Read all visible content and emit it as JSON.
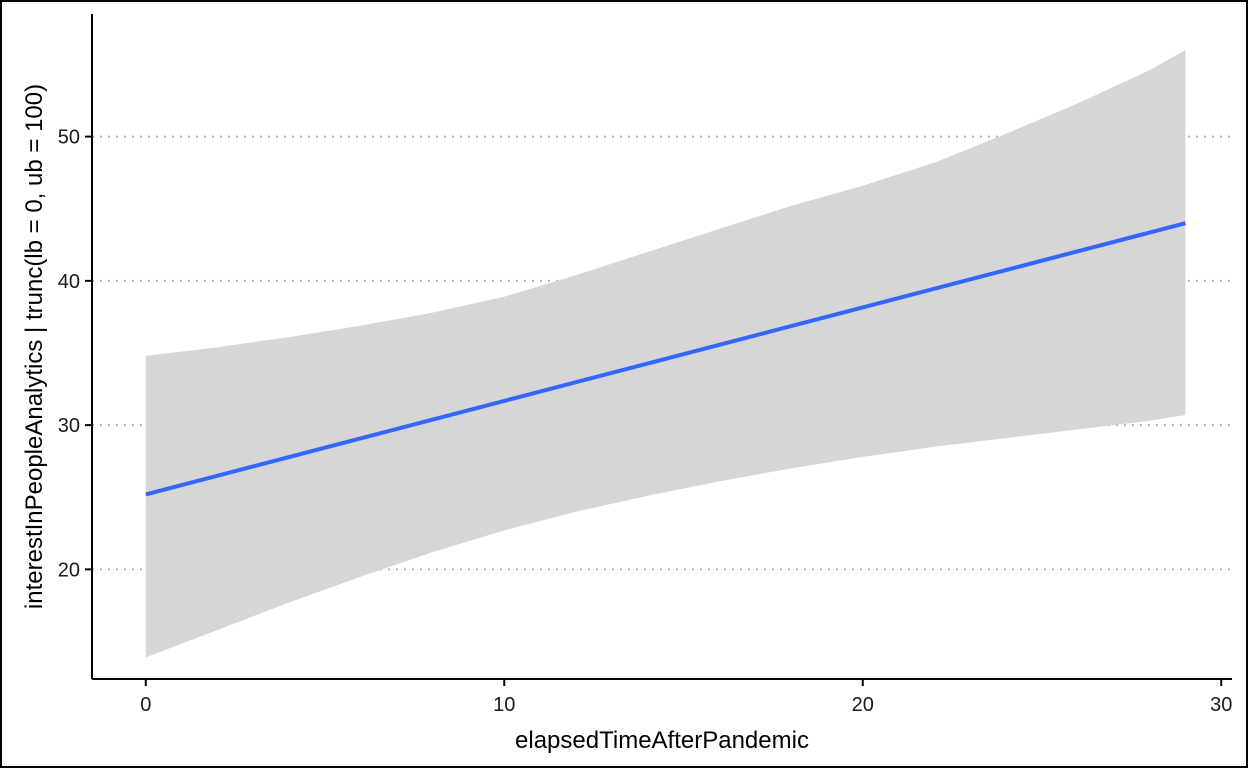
{
  "chart_data": {
    "type": "line",
    "xlabel": "elapsedTimeAfterPandemic",
    "ylabel": "interestInPeopleAnalytics | trunc(lb = 0, ub = 100)",
    "xlim": [
      -1.5,
      30.3
    ],
    "ylim": [
      12.4,
      58.5
    ],
    "x_ticks": [
      0,
      10,
      20,
      30
    ],
    "y_ticks": [
      20,
      30,
      40,
      50
    ],
    "grid": "horizontal dotted major lines",
    "legend": "none",
    "series": [
      {
        "x": [
          0,
          29
        ],
        "y": [
          25.2,
          44.0
        ]
      }
    ],
    "ribbon": {
      "x": [
        0,
        2,
        4,
        6,
        8,
        10,
        12,
        14,
        16,
        18,
        20,
        22,
        24,
        26,
        28,
        29
      ],
      "lower": [
        13.9,
        15.8,
        17.7,
        19.5,
        21.2,
        22.7,
        24.0,
        25.1,
        26.1,
        27.0,
        27.8,
        28.5,
        29.1,
        29.7,
        30.3,
        30.7
      ],
      "upper": [
        34.8,
        35.4,
        36.1,
        36.9,
        37.8,
        38.9,
        40.4,
        42.0,
        43.6,
        45.2,
        46.6,
        48.2,
        50.2,
        52.3,
        54.6,
        56.0
      ]
    },
    "colors": {
      "line": "#3366ff",
      "ribbon": "#d6d6d6",
      "grid": "#b3b3b3",
      "axis": "#000000"
    }
  }
}
